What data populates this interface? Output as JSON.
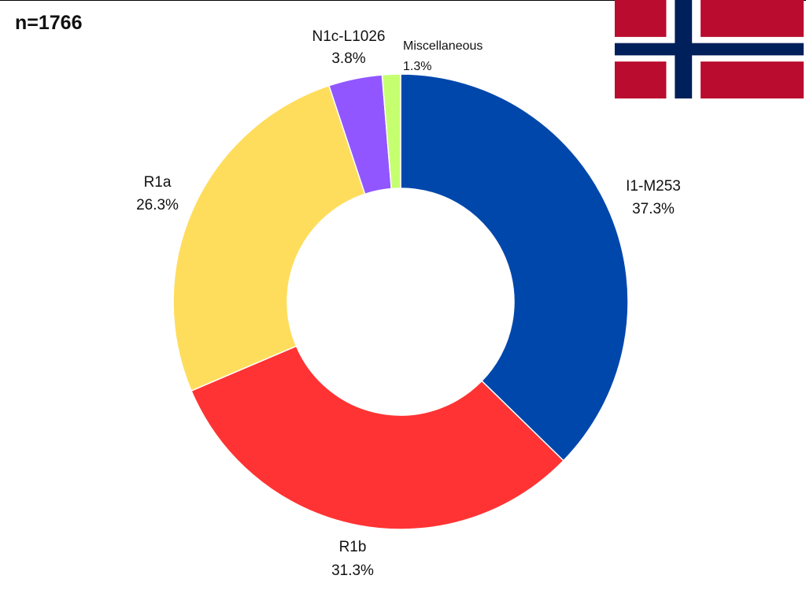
{
  "header": {
    "sample_size": "n=1766"
  },
  "flag": {
    "name": "norway-flag",
    "colors": {
      "red": "#BA0C2F",
      "white": "#FFFFFF",
      "blue": "#00205B"
    }
  },
  "chart_data": {
    "type": "pie",
    "donut": true,
    "title": "",
    "total_n": 1766,
    "slices": [
      {
        "label": "I1-M253",
        "value": 37.3,
        "display": "37.3%",
        "color": "#0047AB"
      },
      {
        "label": "R1b",
        "value": 31.3,
        "display": "31.3%",
        "color": "#FF3333"
      },
      {
        "label": "R1a",
        "value": 26.3,
        "display": "26.3%",
        "color": "#FFDD5C"
      },
      {
        "label": "N1c-L1026",
        "value": 3.8,
        "display": "3.8%",
        "color": "#9156FF"
      },
      {
        "label": "Miscellaneous",
        "value": 1.3,
        "display": "1.3%",
        "color": "#C5FF70"
      }
    ],
    "start_angle": "12 o'clock",
    "direction": "clockwise",
    "legend": "none"
  }
}
